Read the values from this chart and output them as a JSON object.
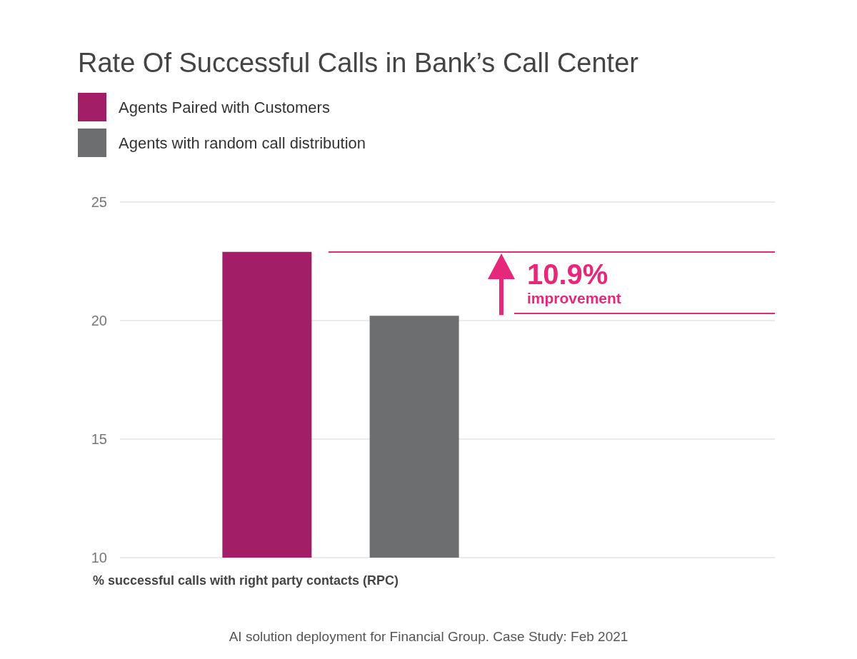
{
  "chart_data": {
    "type": "bar",
    "title": "Rate Of Successful Calls in Bank’s Call Center",
    "xlabel": "% successful calls with right party contacts (RPC)",
    "categories": [
      null
    ],
    "series": [
      {
        "name": "Agents Paired with Customers",
        "color": "#a21e66",
        "values": [
          22.9
        ]
      },
      {
        "name": "Agents with random call distribution",
        "color": "#6d6e70",
        "values": [
          20.2
        ]
      }
    ],
    "ylim": [
      10,
      25
    ],
    "yticks": [
      10,
      15,
      20,
      25
    ],
    "grid": "y",
    "legend": "top left",
    "ref_lines": [
      {
        "axis": "y",
        "value": 22.9,
        "color": "#e6287a"
      },
      {
        "axis": "y",
        "value": 20.3,
        "color": "#e6287a"
      }
    ],
    "annotations": [
      "10.9%",
      "improvement",
      "AI solution deployment for Financial Group. Case Study: Feb 2021"
    ]
  }
}
